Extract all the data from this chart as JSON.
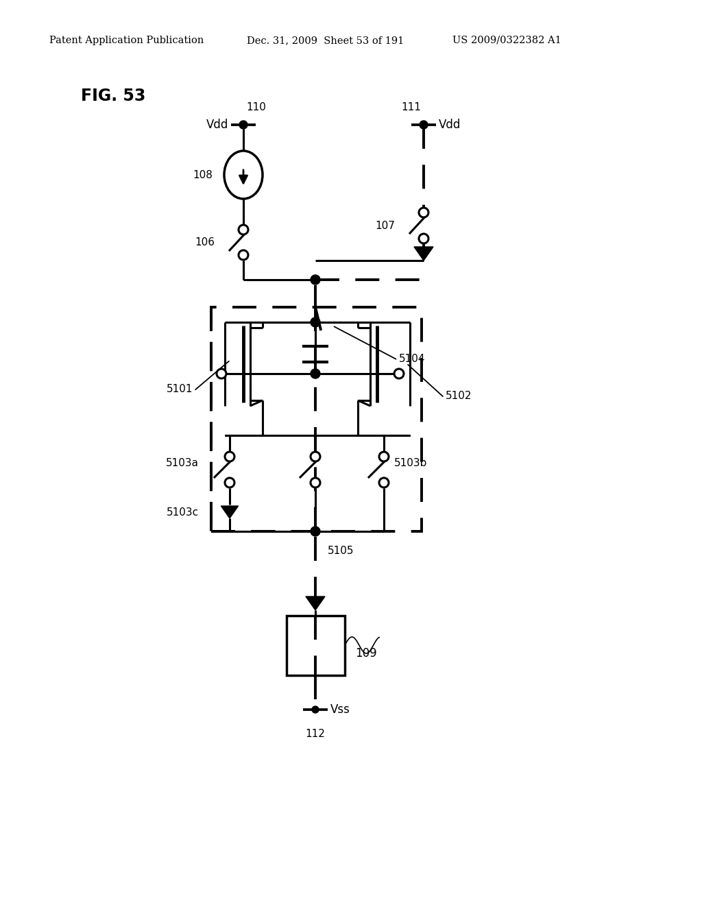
{
  "header_left": "Patent Application Publication",
  "header_center": "Dec. 31, 2009  Sheet 53 of 191",
  "header_right": "US 2009/0322382 A1",
  "bg_color": "#ffffff",
  "fig_label": "FIG. 53",
  "lw_main": 2.2,
  "lw_thick": 3.5,
  "lw_dashed": 2.8,
  "dash": [
    9,
    6
  ],
  "dot_r": 6,
  "open_r": 7,
  "labels": {
    "110": "110",
    "111": "111",
    "vdd_l": "Vdd",
    "vdd_r": "Vdd",
    "108": "108",
    "106": "106",
    "107": "107",
    "5101": "5101",
    "5102": "5102",
    "5103a": "5103a",
    "5103b": "5103b",
    "5103c": "5103c",
    "5104": "5104",
    "5105": "5105",
    "109": "109",
    "112": "112",
    "vss": "Vss"
  }
}
